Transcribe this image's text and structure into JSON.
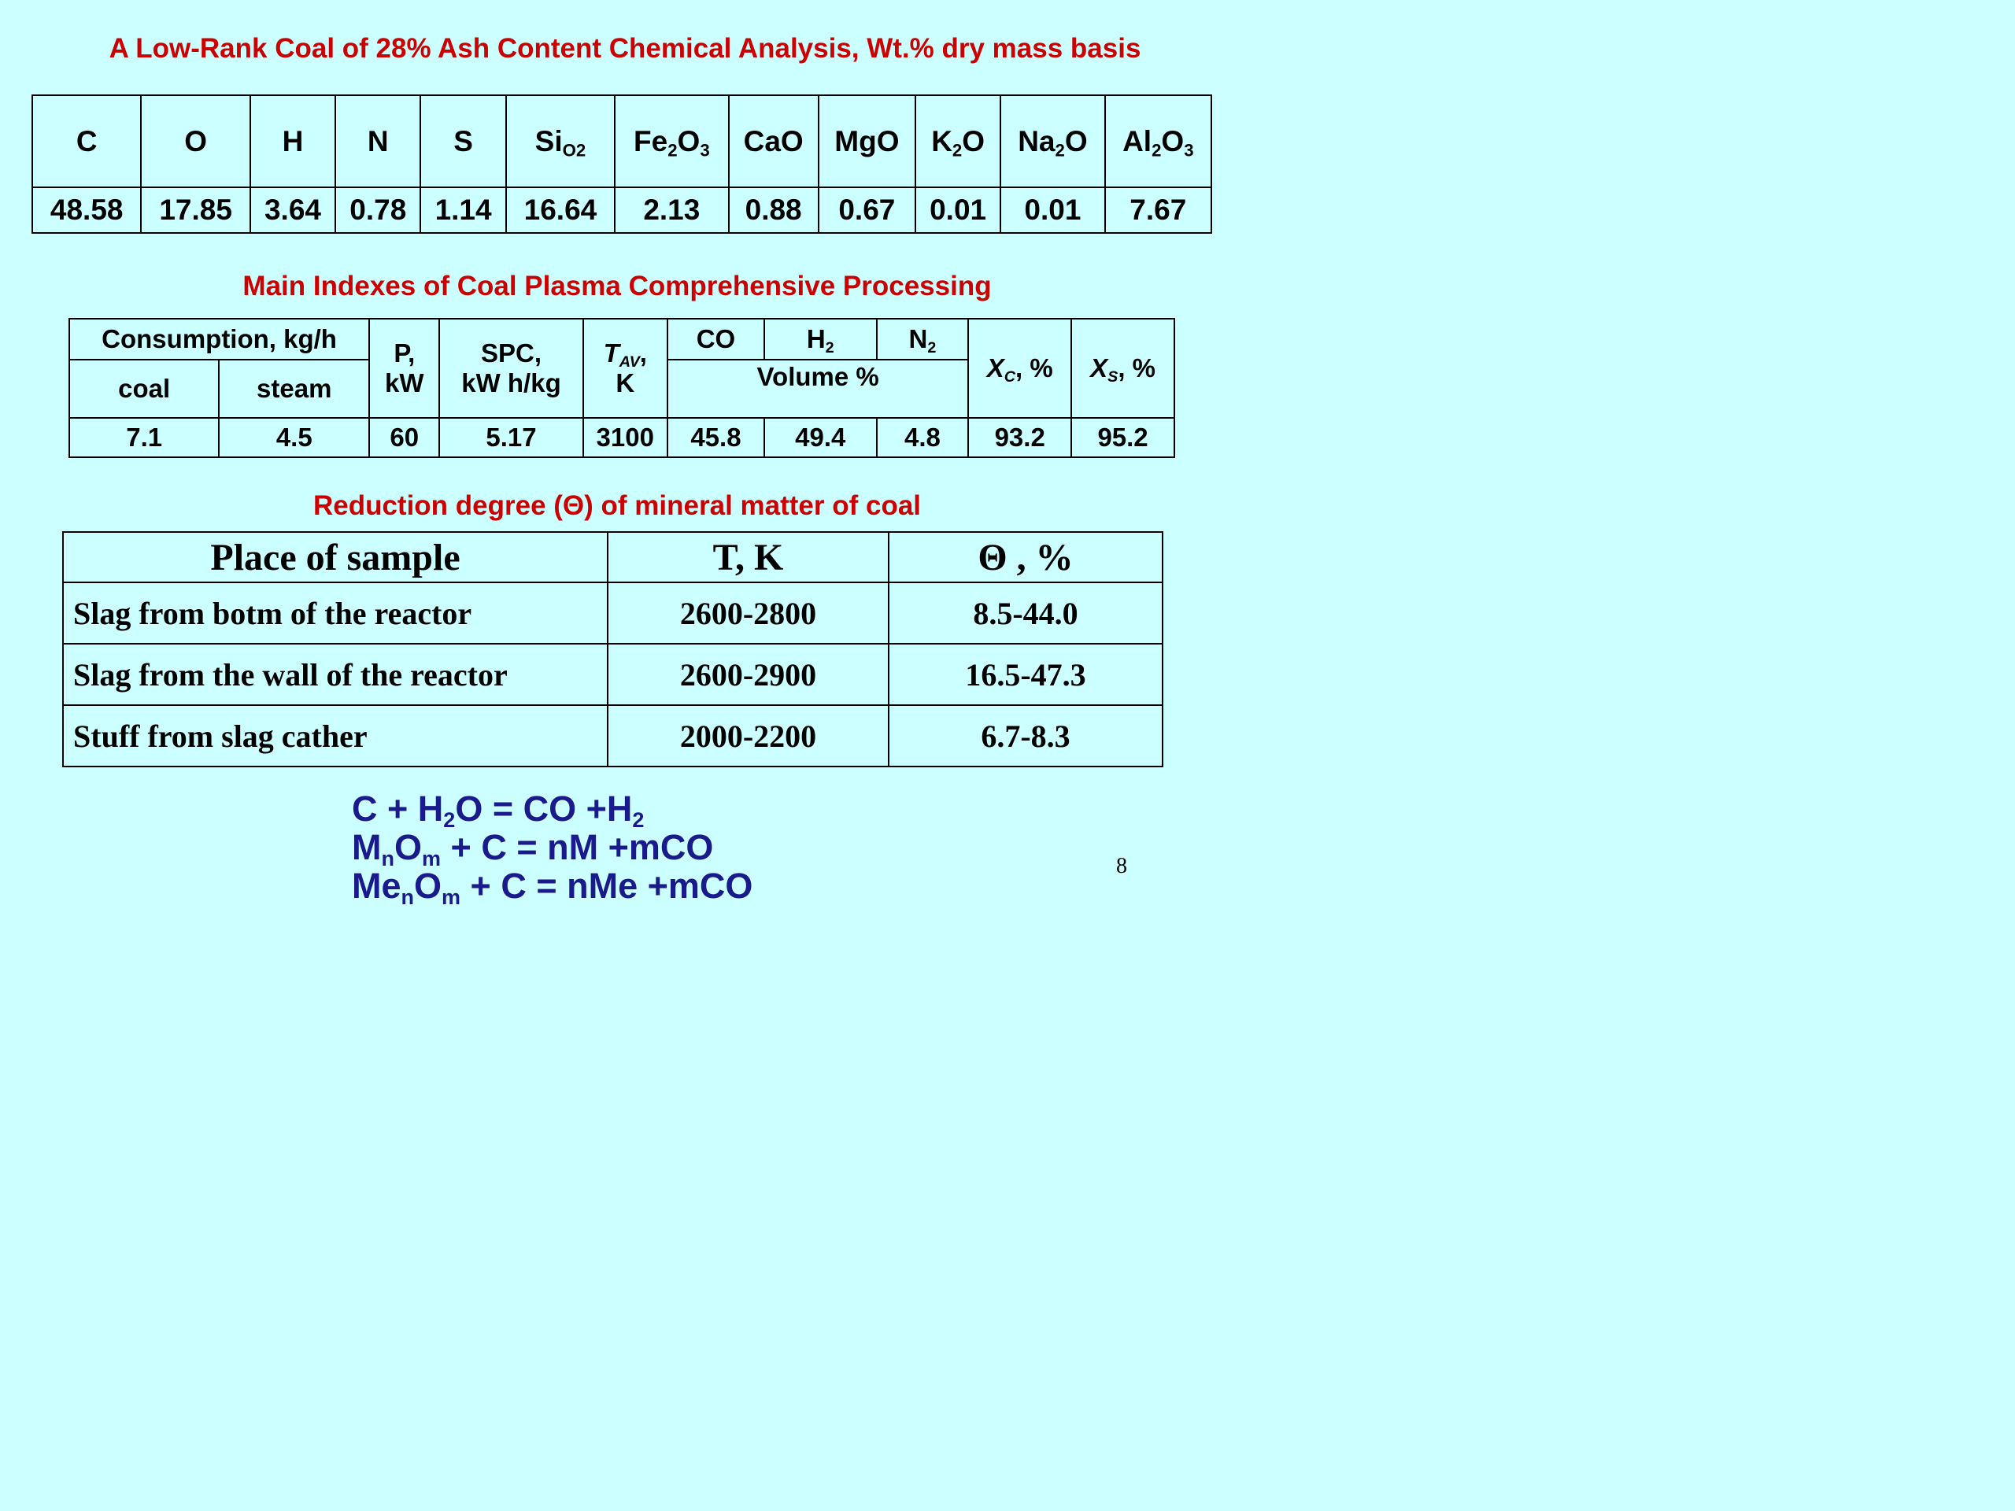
{
  "table1": {
    "title": "A Low-Rank Coal of 28% Ash Content Chemical Analysis, Wt.% dry mass basis",
    "headers": [
      {
        "base": "C"
      },
      {
        "base": "O"
      },
      {
        "base": "H"
      },
      {
        "base": "N"
      },
      {
        "base": "S"
      },
      {
        "parts": [
          "Si",
          "O",
          "",
          "2",
          ""
        ]
      },
      {
        "parts": [
          "Fe",
          "2",
          "O",
          "3",
          ""
        ]
      },
      {
        "base": "CaO"
      },
      {
        "base": "MgO"
      },
      {
        "parts": [
          "K",
          "2",
          "O",
          "",
          ""
        ]
      },
      {
        "parts": [
          "Na",
          "2",
          "O",
          "",
          ""
        ]
      },
      {
        "parts": [
          "Al",
          "2",
          "O",
          "3",
          ""
        ]
      }
    ],
    "values": [
      "48.58",
      "17.85",
      "3.64",
      "0.78",
      "1.14",
      "16.64",
      "2.13",
      "0.88",
      "0.67",
      "0.01",
      "0.01",
      "7.67"
    ]
  },
  "table2": {
    "title": "Main Indexes of Coal Plasma Comprehensive Processing",
    "consumption_label": "Consumption, kg/h",
    "coal_label": "coal",
    "steam_label": "steam",
    "power_label_1": "P,",
    "power_label_2": "kW",
    "spc_label_1": "SPC,",
    "spc_label_2": "kW h/kg",
    "tav_symbol": "T",
    "tav_sub": "AV",
    "tav_comma": ",",
    "tav_unit": "K",
    "co_label": "CO",
    "h2_base": "H",
    "h2_sub": "2",
    "n2_base": "N",
    "n2_sub": "2",
    "volume_label": "Volume %",
    "xc_symbol": "X",
    "xc_sub": "C",
    "xc_unit": ", %",
    "xs_symbol": "X",
    "xs_sub": "S",
    "xs_unit": ", %",
    "values": [
      "7.1",
      "4.5",
      "60",
      "5.17",
      "3100",
      "45.8",
      "49.4",
      "4.8",
      "93.2",
      "95.2"
    ]
  },
  "table3": {
    "title": "Reduction degree (Θ) of mineral matter of coal",
    "headers": [
      "Place of sample",
      "T, K",
      "Θ , %"
    ],
    "rows": [
      [
        "Slag from botm of the reactor",
        "2600-2800",
        "8.5-44.0"
      ],
      [
        "Slag from the wall of the reactor",
        "2600-2900",
        "16.5-47.3"
      ],
      [
        "Stuff from slag cather",
        "2000-2200",
        "6.7-8.3"
      ]
    ]
  },
  "equations": [
    {
      "parts": [
        "C + H",
        "2",
        "O = CO +H",
        "2",
        ""
      ]
    },
    {
      "parts": [
        "M",
        "n",
        "O",
        "m",
        " + C = nM +mCO"
      ]
    },
    {
      "parts": [
        "Me",
        "n",
        "O",
        "m",
        " + C = nMe +mCO"
      ]
    }
  ],
  "page_number": "8"
}
